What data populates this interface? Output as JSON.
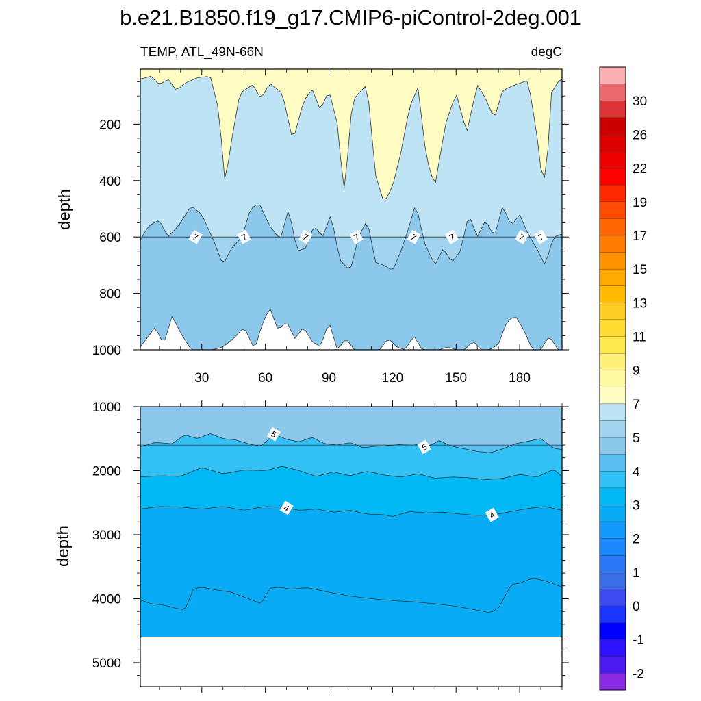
{
  "chart_data": [
    {
      "type": "heatmap",
      "subtype": "filled-contour",
      "panel": "upper",
      "title": "b.e21.B1850.f19_g17.CMIP6-piControl-2deg.001",
      "left_label": "TEMP, ATL_49N-66N",
      "right_label": "degC",
      "ylabel": "depth",
      "xlabel": "",
      "xlim": [
        1,
        200
      ],
      "ylim": [
        1000,
        5
      ],
      "xticks": [
        "30",
        "60",
        "90",
        "120",
        "150",
        "180"
      ],
      "xtick_values": [
        30,
        60,
        90,
        120,
        150,
        180
      ],
      "yticks": [
        "200",
        "400",
        "600",
        "800",
        "1000"
      ],
      "ytick_values": [
        200,
        400,
        600,
        800,
        1000
      ],
      "contour_line_labels": [
        "7",
        "7",
        "7",
        "7",
        "7",
        "7",
        "7",
        "7"
      ],
      "contour_label_x": [
        27,
        50,
        79,
        103,
        130,
        148,
        181,
        190
      ],
      "layers": [
        {
          "range": "7-8",
          "color": "#fffcc4",
          "x": [
            1,
            6,
            10,
            14,
            18,
            22,
            28,
            34,
            38,
            41,
            44,
            48,
            54,
            58,
            62,
            68,
            73,
            78,
            82,
            86,
            90,
            94,
            97,
            99,
            101,
            104,
            108,
            112,
            116,
            120,
            124,
            128,
            132,
            136,
            140,
            145,
            150,
            155,
            160,
            164,
            168,
            172,
            178,
            184,
            188,
            191,
            193,
            195,
            198,
            200
          ],
          "lower_depth": [
            40,
            30,
            60,
            40,
            80,
            55,
            35,
            30,
            150,
            410,
            260,
            90,
            60,
            110,
            55,
            90,
            260,
            120,
            75,
            150,
            80,
            200,
            440,
            300,
            120,
            90,
            60,
            380,
            480,
            420,
            300,
            140,
            70,
            320,
            420,
            200,
            90,
            230,
            60,
            110,
            180,
            80,
            60,
            45,
            230,
            420,
            330,
            90,
            50,
            40
          ]
        },
        {
          "range": "6-7",
          "color": "#bde3f4",
          "x": [
            1,
            200
          ],
          "lower_depth": [
            600,
            600
          ]
        },
        {
          "range": "5-6",
          "color": "#a2d4f0",
          "x": [
            1,
            5,
            10,
            14,
            19,
            25,
            30,
            36,
            40,
            44,
            49,
            53,
            57,
            62,
            67,
            71,
            75,
            79,
            83,
            87,
            91,
            95,
            100,
            104,
            108,
            112,
            116,
            120,
            124,
            128,
            131,
            135,
            140,
            144,
            148,
            152,
            156,
            160,
            164,
            168,
            172,
            176,
            180,
            184,
            188,
            192,
            196,
            200
          ],
          "lower_depth": [
            610,
            560,
            540,
            600,
            560,
            490,
            520,
            620,
            700,
            640,
            600,
            500,
            480,
            560,
            610,
            500,
            650,
            640,
            560,
            600,
            520,
            680,
            720,
            600,
            540,
            690,
            700,
            720,
            650,
            560,
            480,
            620,
            700,
            640,
            690,
            650,
            520,
            600,
            540,
            600,
            490,
            560,
            520,
            590,
            640,
            700,
            600,
            590
          ]
        },
        {
          "range": "4-5",
          "color": "#8cc8ec",
          "x": [
            1,
            4,
            8,
            12,
            16,
            20,
            25,
            30,
            35,
            40,
            45,
            50,
            55,
            58,
            62,
            66,
            70,
            74,
            78,
            82,
            86,
            90,
            94,
            98,
            102,
            106,
            110,
            114,
            118,
            122,
            126,
            130,
            134,
            138,
            142,
            146,
            150,
            154,
            158,
            162,
            166,
            170,
            174,
            178,
            182,
            186,
            190,
            194,
            198,
            200
          ],
          "lower_depth": [
            990,
            960,
            920,
            980,
            880,
            940,
            1000,
            1000,
            1000,
            990,
            960,
            920,
            1000,
            920,
            850,
            930,
            900,
            960,
            920,
            970,
            990,
            900,
            1000,
            960,
            1000,
            1000,
            1000,
            1000,
            960,
            990,
            1000,
            950,
            1000,
            1000,
            1000,
            990,
            1000,
            1000,
            970,
            1000,
            1000,
            980,
            900,
            880,
            930,
            1000,
            1000,
            950,
            1000,
            1000
          ]
        }
      ],
      "range_min_depth": 5
    },
    {
      "type": "heatmap",
      "subtype": "filled-contour",
      "panel": "lower",
      "ylabel": "depth",
      "xlabel": "",
      "xlim": [
        1,
        200
      ],
      "ylim": [
        1000,
        5375
      ],
      "yticks": [
        "1000",
        "2000",
        "3000",
        "4000",
        "5000"
      ],
      "ytick_values": [
        1000,
        2000,
        3000,
        4000,
        5000
      ],
      "ocean_bottom_depth": 4600,
      "contour_line_labels": [
        "5",
        "5",
        "4",
        "4"
      ],
      "contour_label_x": [
        64,
        135,
        70,
        167
      ],
      "layers": [
        {
          "range": "4-5",
          "color": "#8cc8ec",
          "x": [
            1,
            200
          ],
          "lower_depth": [
            1600,
            1600
          ]
        },
        {
          "range": "3-4",
          "color": "#5bbff3",
          "x": [
            1,
            8,
            16,
            22,
            28,
            34,
            40,
            46,
            52,
            58,
            64,
            70,
            76,
            82,
            88,
            94,
            100,
            106,
            112,
            118,
            124,
            130,
            136,
            142,
            148,
            154,
            160,
            166,
            172,
            178,
            184,
            190,
            196,
            200
          ],
          "lower_depth": [
            1630,
            1560,
            1580,
            1440,
            1500,
            1420,
            1500,
            1520,
            1580,
            1620,
            1430,
            1510,
            1550,
            1480,
            1580,
            1600,
            1560,
            1640,
            1620,
            1610,
            1590,
            1580,
            1640,
            1530,
            1620,
            1660,
            1700,
            1720,
            1660,
            1580,
            1540,
            1500,
            1650,
            1670
          ]
        },
        {
          "range": "2-3",
          "color": "#33c0f5",
          "x": [
            1,
            10,
            20,
            30,
            40,
            50,
            60,
            68,
            76,
            84,
            92,
            100,
            108,
            116,
            124,
            132,
            140,
            148,
            156,
            164,
            172,
            180,
            188,
            196,
            200
          ],
          "lower_depth": [
            2100,
            2080,
            2090,
            1950,
            2050,
            1990,
            2000,
            1930,
            2000,
            2090,
            2020,
            2080,
            2010,
            2070,
            2100,
            2050,
            2120,
            2100,
            2110,
            2140,
            2120,
            2060,
            2100,
            1980,
            2090
          ]
        },
        {
          "range": "1-2",
          "color": "#00b8f3",
          "x": [
            1,
            10,
            20,
            30,
            40,
            50,
            60,
            68,
            76,
            84,
            92,
            100,
            108,
            116,
            120,
            128,
            136,
            144,
            152,
            160,
            168,
            176,
            184,
            192,
            200
          ],
          "lower_depth": [
            2600,
            2560,
            2570,
            2600,
            2560,
            2620,
            2560,
            2570,
            2620,
            2600,
            2650,
            2620,
            2680,
            2690,
            2720,
            2640,
            2660,
            2650,
            2680,
            2700,
            2690,
            2640,
            2590,
            2560,
            2620
          ]
        },
        {
          "range": "0-1",
          "color": "#0aabf5",
          "x": [
            1,
            6,
            12,
            18,
            22,
            26,
            30,
            36,
            44,
            52,
            58,
            62,
            66,
            72,
            80,
            90,
            100,
            110,
            120,
            130,
            140,
            150,
            160,
            166,
            170,
            176,
            180,
            186,
            192,
            200
          ],
          "lower_depth": [
            4020,
            4080,
            4100,
            4150,
            4180,
            3850,
            3820,
            3860,
            3900,
            4000,
            4080,
            3840,
            3820,
            3850,
            3830,
            3900,
            3960,
            4000,
            4030,
            4050,
            4080,
            4120,
            4180,
            4220,
            4150,
            3780,
            3760,
            3680,
            3720,
            3820
          ]
        },
        {
          "range": "-1-0",
          "color": "#0aabf5",
          "x": [
            1,
            200
          ],
          "lower_depth": [
            4600,
            4600
          ]
        }
      ]
    },
    {
      "type": "colorbar",
      "tick_labels": [
        "30",
        "26",
        "22",
        "19",
        "17",
        "15",
        "13",
        "11",
        "9",
        "7",
        "5",
        "4",
        "3",
        "2",
        "1",
        "0",
        "-1",
        "-2"
      ],
      "colors": [
        "#fbb1b4",
        "#ec6a6d",
        "#dc3434",
        "#cc0000",
        "#dd0000",
        "#ee0000",
        "#ff0000",
        "#ff2a00",
        "#ff4b00",
        "#ff6600",
        "#ff7c00",
        "#ff9300",
        "#ffa900",
        "#ffbb00",
        "#ffcc22",
        "#ffdd33",
        "#ffe84d",
        "#fff079",
        "#fff8a3",
        "#fffcc4",
        "#bde3f4",
        "#a2d4f0",
        "#8cc8ec",
        "#5bbff3",
        "#33c0f5",
        "#00b8f3",
        "#0aabf5",
        "#1399fa",
        "#1e88ff",
        "#2a78f3",
        "#3a6ee6",
        "#3c4bf0",
        "#1a35ff",
        "#0000ff",
        "#2e12ff",
        "#4a1af0",
        "#8a2be2"
      ]
    }
  ]
}
